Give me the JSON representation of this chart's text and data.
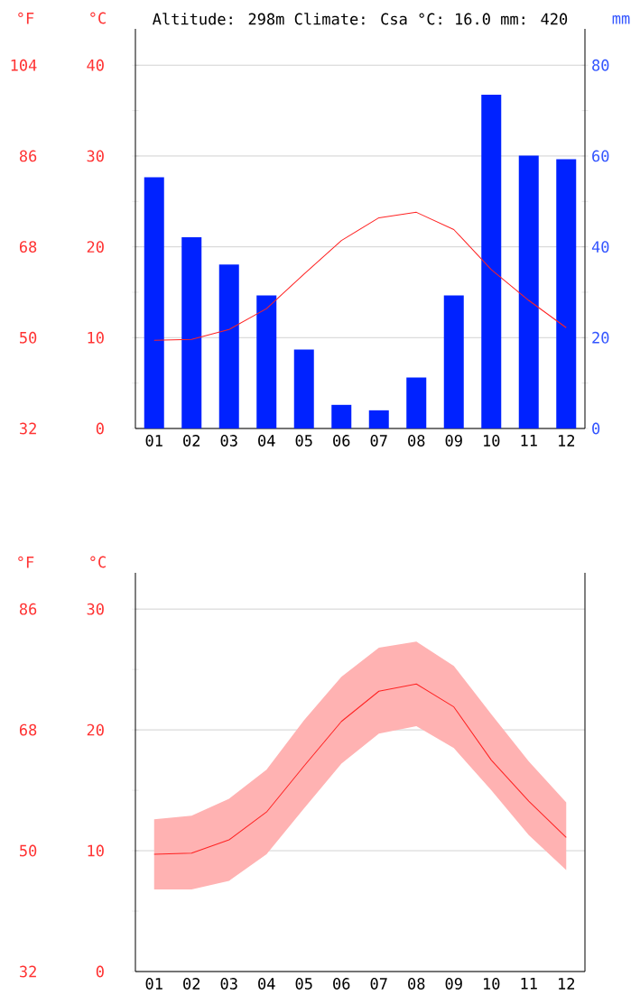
{
  "chart_data": [
    {
      "type": "bar",
      "title": "Altitude: 298m   Climate: Csa   °C: 16.0   mm: 420",
      "ylabel": "°C",
      "y2label": "mm",
      "y3label": "°F",
      "categories": [
        "01",
        "02",
        "03",
        "04",
        "05",
        "06",
        "07",
        "08",
        "09",
        "10",
        "11",
        "12"
      ],
      "series": [
        {
          "axis": "y2",
          "color": "#0022ff",
          "values": [
            55.3,
            42.1,
            36.1,
            29.3,
            17.4,
            5.2,
            4.0,
            11.2,
            29.3,
            73.5,
            60.1,
            59.3
          ]
        },
        {
          "type": "line",
          "color": "#ff2222",
          "values": [
            9.7,
            9.8,
            10.9,
            13.2,
            17.0,
            20.7,
            23.2,
            23.8,
            21.9,
            17.5,
            14.1,
            11.1
          ]
        }
      ],
      "ylim": [
        0,
        44
      ],
      "yticks": [
        0,
        10,
        20,
        30,
        40
      ],
      "y2lim": [
        0,
        88
      ],
      "y2ticks": [
        0,
        20,
        40,
        60,
        80
      ],
      "y3lim": [
        32,
        111.2
      ],
      "y3ticks": [
        32,
        50,
        68,
        86,
        104
      ],
      "grid": "y"
    },
    {
      "type": "line",
      "ylabel": "°C",
      "y3label": "°F",
      "categories": [
        "01",
        "02",
        "03",
        "04",
        "05",
        "06",
        "07",
        "08",
        "09",
        "10",
        "11",
        "12"
      ],
      "series": [
        {
          "color": "#ff2222",
          "values": [
            9.7,
            9.8,
            10.9,
            13.2,
            17.0,
            20.7,
            23.2,
            23.8,
            21.9,
            17.5,
            14.1,
            11.1
          ],
          "lower": [
            6.8,
            6.8,
            7.5,
            9.7,
            13.5,
            17.2,
            19.7,
            20.3,
            18.5,
            15.0,
            11.3,
            8.4
          ],
          "upper": [
            12.6,
            12.9,
            14.3,
            16.7,
            20.8,
            24.4,
            26.8,
            27.3,
            25.3,
            21.3,
            17.4,
            14.0
          ]
        }
      ],
      "ylim": [
        0,
        33
      ],
      "yticks": [
        0,
        10,
        20,
        30
      ],
      "y3lim": [
        32,
        91.4
      ],
      "y3ticks": [
        32,
        50,
        68,
        86
      ],
      "grid": "y"
    }
  ]
}
